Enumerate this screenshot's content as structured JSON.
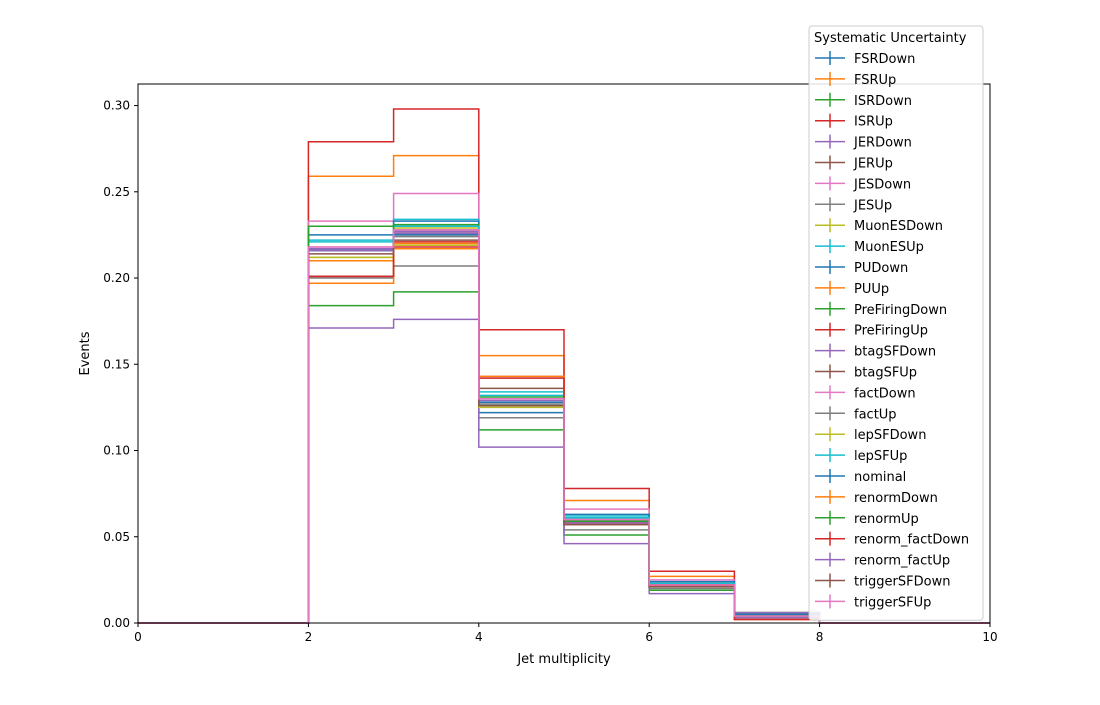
{
  "chart_data": {
    "type": "line",
    "title": "",
    "xlabel": "Jet multiplicity",
    "ylabel": "Events",
    "xlim": [
      0,
      10
    ],
    "ylim": [
      0.0,
      0.3125
    ],
    "x_ticks": [
      0,
      2,
      4,
      6,
      8,
      10
    ],
    "x_tick_labels": [
      "0",
      "2",
      "4",
      "6",
      "8",
      "10"
    ],
    "y_ticks": [
      0.0,
      0.05,
      0.1,
      0.15,
      0.2,
      0.25,
      0.3
    ],
    "y_tick_labels": [
      "0.00",
      "0.05",
      "0.10",
      "0.15",
      "0.20",
      "0.25",
      "0.30"
    ],
    "grid": false,
    "legend": {
      "title": "Systematic Uncertainty",
      "placement": "top-right, extending above the axes"
    },
    "bin_edges": [
      0,
      1,
      2,
      3,
      4,
      5,
      6,
      7,
      8,
      9,
      10
    ],
    "series": [
      {
        "name": "FSRDown",
        "color": "#1f77b4",
        "values": [
          0,
          0,
          0.225,
          0.226,
          0.126,
          0.06,
          0.022,
          0.004,
          0,
          0
        ]
      },
      {
        "name": "FSRUp",
        "color": "#ff7f0e",
        "values": [
          0,
          0,
          0.259,
          0.271,
          0.155,
          0.071,
          0.027,
          0.005,
          0,
          0
        ]
      },
      {
        "name": "ISRDown",
        "color": "#2ca02c",
        "values": [
          0,
          0,
          0.184,
          0.192,
          0.112,
          0.051,
          0.019,
          0.003,
          0,
          0
        ]
      },
      {
        "name": "ISRUp",
        "color": "#d62728",
        "values": [
          0,
          0,
          0.279,
          0.298,
          0.17,
          0.078,
          0.03,
          0.006,
          0,
          0
        ]
      },
      {
        "name": "JERDown",
        "color": "#9467bd",
        "values": [
          0,
          0,
          0.217,
          0.226,
          0.129,
          0.059,
          0.022,
          0.004,
          0,
          0
        ]
      },
      {
        "name": "JERUp",
        "color": "#8c564b",
        "values": [
          0,
          0,
          0.216,
          0.225,
          0.128,
          0.058,
          0.022,
          0.004,
          0,
          0
        ]
      },
      {
        "name": "JESDown",
        "color": "#e377c2",
        "values": [
          0,
          0,
          0.233,
          0.249,
          0.143,
          0.066,
          0.025,
          0.005,
          0,
          0
        ]
      },
      {
        "name": "JESUp",
        "color": "#7f7f7f",
        "values": [
          0,
          0,
          0.2,
          0.207,
          0.119,
          0.054,
          0.02,
          0.004,
          0,
          0
        ]
      },
      {
        "name": "MuonESDown",
        "color": "#bcbd22",
        "values": [
          0,
          0,
          0.212,
          0.229,
          0.13,
          0.059,
          0.022,
          0.004,
          0,
          0
        ]
      },
      {
        "name": "MuonESUp",
        "color": "#17becf",
        "values": [
          0,
          0,
          0.222,
          0.234,
          0.134,
          0.062,
          0.023,
          0.005,
          0,
          0
        ]
      },
      {
        "name": "PUDown",
        "color": "#1f77b4",
        "values": [
          0,
          0,
          0.23,
          0.233,
          0.122,
          0.063,
          0.024,
          0.005,
          0,
          0
        ]
      },
      {
        "name": "PUUp",
        "color": "#ff7f0e",
        "values": [
          0,
          0,
          0.21,
          0.217,
          0.128,
          0.058,
          0.021,
          0.004,
          0,
          0
        ]
      },
      {
        "name": "PreFiringDown",
        "color": "#2ca02c",
        "values": [
          0,
          0,
          0.23,
          0.231,
          0.131,
          0.06,
          0.022,
          0.004,
          0,
          0
        ]
      },
      {
        "name": "PreFiringUp",
        "color": "#d62728",
        "values": [
          0,
          0,
          0.201,
          0.221,
          0.13,
          0.059,
          0.022,
          0.004,
          0,
          0
        ]
      },
      {
        "name": "btagSFDown",
        "color": "#9467bd",
        "values": [
          0,
          0,
          0.171,
          0.176,
          0.102,
          0.046,
          0.017,
          0.003,
          0,
          0
        ]
      },
      {
        "name": "btagSFUp",
        "color": "#8c564b",
        "values": [
          0,
          0,
          0.201,
          0.227,
          0.136,
          0.061,
          0.023,
          0.004,
          0,
          0
        ]
      },
      {
        "name": "factDown",
        "color": "#e377c2",
        "values": [
          0,
          0,
          0.218,
          0.228,
          0.13,
          0.06,
          0.022,
          0.004,
          0,
          0
        ]
      },
      {
        "name": "factUp",
        "color": "#7f7f7f",
        "values": [
          0,
          0,
          0.216,
          0.224,
          0.127,
          0.058,
          0.021,
          0.004,
          0,
          0
        ]
      },
      {
        "name": "lepSFDown",
        "color": "#bcbd22",
        "values": [
          0,
          0,
          0.212,
          0.219,
          0.125,
          0.057,
          0.021,
          0.004,
          0,
          0
        ]
      },
      {
        "name": "lepSFUp",
        "color": "#17becf",
        "values": [
          0,
          0,
          0.221,
          0.23,
          0.132,
          0.061,
          0.023,
          0.004,
          0,
          0
        ]
      },
      {
        "name": "nominal",
        "color": "#1f77b4",
        "values": [
          0,
          0,
          0.216,
          0.225,
          0.128,
          0.059,
          0.022,
          0.004,
          0,
          0
        ]
      },
      {
        "name": "renormDown",
        "color": "#ff7f0e",
        "values": [
          0,
          0,
          0.197,
          0.22,
          0.143,
          0.057,
          0.022,
          0.002,
          0,
          0
        ]
      },
      {
        "name": "renormUp",
        "color": "#2ca02c",
        "values": [
          0,
          0,
          0.23,
          0.228,
          0.126,
          0.059,
          0.021,
          0.006,
          0,
          0
        ]
      },
      {
        "name": "renorm_factDown",
        "color": "#d62728",
        "values": [
          0,
          0,
          0.201,
          0.218,
          0.142,
          0.058,
          0.022,
          0.002,
          0,
          0
        ]
      },
      {
        "name": "renorm_factUp",
        "color": "#9467bd",
        "values": [
          0,
          0,
          0.216,
          0.227,
          0.126,
          0.058,
          0.021,
          0.006,
          0,
          0
        ]
      },
      {
        "name": "triggerSFDown",
        "color": "#8c564b",
        "values": [
          0,
          0,
          0.214,
          0.222,
          0.126,
          0.057,
          0.021,
          0.004,
          0,
          0
        ]
      },
      {
        "name": "triggerSFUp",
        "color": "#e377c2",
        "values": [
          0,
          0,
          0.218,
          0.228,
          0.13,
          0.06,
          0.022,
          0.004,
          0,
          0
        ]
      }
    ]
  }
}
